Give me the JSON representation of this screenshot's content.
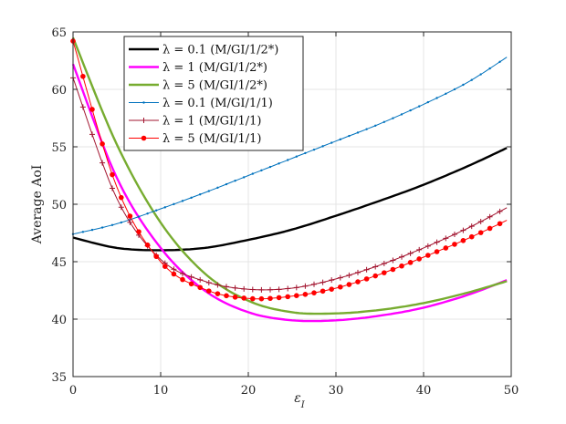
{
  "chart_data": {
    "type": "line",
    "xlabel": "ε_I",
    "ylabel": "Average AoI",
    "xlim": [
      0,
      50
    ],
    "ylim": [
      35,
      65
    ],
    "xticks": [
      0,
      10,
      20,
      30,
      40,
      50
    ],
    "yticks": [
      35,
      40,
      45,
      50,
      55,
      60,
      65
    ],
    "grid": true,
    "legend_position": "top-left",
    "x": [
      0,
      5,
      10,
      15,
      20,
      25,
      30,
      35,
      40,
      45,
      49.5
    ],
    "series": [
      {
        "name": "λ = 0.1 (M/GI/1/2*)",
        "color": "#000000",
        "marker": "none",
        "values": [
          47.1,
          46.2,
          46.0,
          46.2,
          46.9,
          47.8,
          49.0,
          50.3,
          51.7,
          53.3,
          54.9
        ]
      },
      {
        "name": "λ = 1 (M/GI/1/2*)",
        "color": "#ff00ff",
        "marker": "none",
        "values": [
          62.2,
          52.3,
          46.2,
          42.5,
          40.6,
          39.9,
          39.9,
          40.3,
          41.0,
          42.1,
          43.4
        ]
      },
      {
        "name": "λ = 5 (M/GI/1/2*)",
        "color": "#77ac30",
        "marker": "none",
        "values": [
          64.5,
          55.2,
          48.4,
          44.0,
          41.6,
          40.6,
          40.5,
          40.8,
          41.4,
          42.3,
          43.3
        ]
      },
      {
        "name": "λ = 0.1 (M/GI/1/1)",
        "color": "#0072bd",
        "marker": "dot",
        "values": [
          47.4,
          48.3,
          49.6,
          51.0,
          52.5,
          54.0,
          55.5,
          57.0,
          58.7,
          60.6,
          62.8
        ]
      },
      {
        "name": "λ = 1 (M/GI/1/1)",
        "color": "#a2142f",
        "marker": "plus",
        "values": [
          61.0,
          50.5,
          45.2,
          43.3,
          42.6,
          42.7,
          43.5,
          44.7,
          46.2,
          47.9,
          49.7
        ]
      },
      {
        "name": "λ = 5 (M/GI/1/1)",
        "color": "#ff0000",
        "marker": "circle",
        "values": [
          64.2,
          51.5,
          45.0,
          42.6,
          41.8,
          42.0,
          42.7,
          43.9,
          45.4,
          47.0,
          48.6
        ]
      }
    ]
  }
}
